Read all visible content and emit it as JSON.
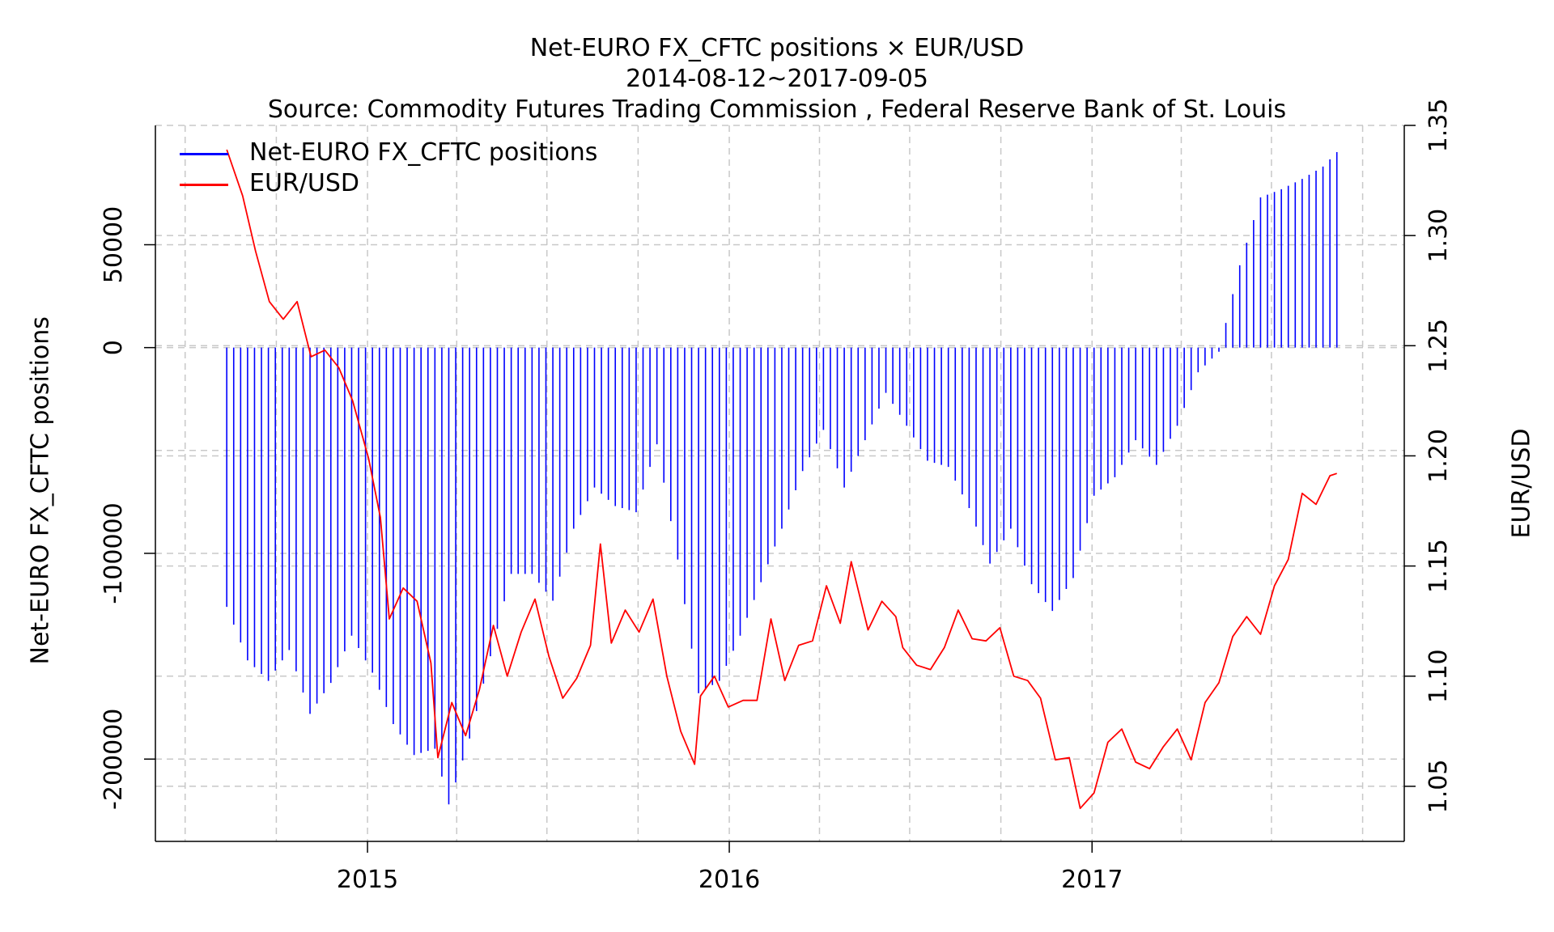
{
  "title": "Net-EURO FX_CFTC positions × EUR/USD",
  "subtitle": "2014-08-12~2017-09-05",
  "source": "Source: Commodity Futures Trading Commission , Federal Reserve Bank of St. Louis",
  "colors": {
    "bars": "#0000ff",
    "line": "#ff0000",
    "grid": "#c8c8c8",
    "axis": "#000000"
  },
  "chart_data": {
    "type": "bar+line",
    "title": "Net-EURO FX_CFTC positions × EUR/USD",
    "subtitle": "2014-08-12~2017-09-05",
    "grid": true,
    "legend_position": "top-left",
    "legend": [
      "Net-EURO FX_CFTC positions",
      "EUR/USD"
    ],
    "x_axis": {
      "type": "date",
      "min": "2014-06-01",
      "max": "2017-11-12",
      "ticks": [
        "2015-01-01",
        "2016-01-01",
        "2017-01-01"
      ],
      "tick_labels": [
        "2015",
        "2016",
        "2017"
      ]
    },
    "y_left": {
      "label": "Net-EURO FX_CFTC positions",
      "range": [
        -240000,
        108000
      ],
      "ticks": [
        -200000,
        -100000,
        0,
        50000
      ],
      "tick_labels": [
        "-200000",
        "-100000",
        "0",
        "50000"
      ]
    },
    "y_right": {
      "label": "EUR/USD",
      "range": [
        1.025,
        1.35
      ],
      "ticks": [
        1.05,
        1.1,
        1.15,
        1.2,
        1.25,
        1.3,
        1.35
      ],
      "tick_labels": [
        "1.05",
        "1.10",
        "1.15",
        "1.20",
        "1.25",
        "1.30",
        "1.35"
      ]
    },
    "series": [
      {
        "name": "Net-EURO FX_CFTC positions",
        "type": "bar",
        "axis": "left",
        "dates": [
          "2014-08-12",
          "2014-09-02",
          "2014-09-23",
          "2014-10-14",
          "2014-11-04",
          "2014-11-25",
          "2014-12-16",
          "2015-01-06",
          "2015-01-27",
          "2015-02-17",
          "2015-03-10",
          "2015-03-24",
          "2015-04-14",
          "2015-05-05",
          "2015-05-26",
          "2015-06-16",
          "2015-07-07",
          "2015-07-28",
          "2015-08-18",
          "2015-09-08",
          "2015-09-29",
          "2015-10-20",
          "2015-11-10",
          "2015-12-01",
          "2015-12-22",
          "2016-01-12",
          "2016-02-02",
          "2016-02-23",
          "2016-03-15",
          "2016-04-05",
          "2016-04-26",
          "2016-05-17",
          "2016-06-07",
          "2016-06-28",
          "2016-07-19",
          "2016-08-09",
          "2016-08-30",
          "2016-09-20",
          "2016-10-11",
          "2016-11-01",
          "2016-11-22",
          "2016-12-13",
          "2017-01-03",
          "2017-01-24",
          "2017-02-14",
          "2017-03-07",
          "2017-03-28",
          "2017-04-18",
          "2017-05-09",
          "2017-05-30",
          "2017-06-20",
          "2017-07-11",
          "2017-08-01",
          "2017-08-22",
          "2017-09-05"
        ],
        "values": [
          -126000,
          -152000,
          -162000,
          -147000,
          -178000,
          -163000,
          -140000,
          -158000,
          -183000,
          -198000,
          -195000,
          -222000,
          -190000,
          -150000,
          -110000,
          -110000,
          -123000,
          -88000,
          -68000,
          -77000,
          -80000,
          -47000,
          -103000,
          -168000,
          -162000,
          -140000,
          -114000,
          -88000,
          -60000,
          -40000,
          -68000,
          -45000,
          -22000,
          -38000,
          -55000,
          -58000,
          -78000,
          -105000,
          -88000,
          -115000,
          -128000,
          -112000,
          -72000,
          -63000,
          -45000,
          -57000,
          -38000,
          -12000,
          -2000,
          40000,
          73000,
          77000,
          82000,
          88000,
          95000
        ]
      },
      {
        "name": "EUR/USD",
        "type": "line",
        "axis": "right",
        "dates": [
          "2014-08-12",
          "2014-08-28",
          "2014-09-10",
          "2014-09-24",
          "2014-10-08",
          "2014-10-22",
          "2014-11-05",
          "2014-11-19",
          "2014-12-03",
          "2014-12-17",
          "2015-01-02",
          "2015-01-14",
          "2015-01-23",
          "2015-02-06",
          "2015-02-20",
          "2015-03-06",
          "2015-03-13",
          "2015-03-27",
          "2015-04-10",
          "2015-04-24",
          "2015-05-08",
          "2015-05-22",
          "2015-06-05",
          "2015-06-19",
          "2015-07-03",
          "2015-07-17",
          "2015-07-31",
          "2015-08-14",
          "2015-08-24",
          "2015-09-04",
          "2015-09-18",
          "2015-10-02",
          "2015-10-16",
          "2015-10-30",
          "2015-11-13",
          "2015-11-27",
          "2015-12-03",
          "2015-12-17",
          "2015-12-31",
          "2016-01-15",
          "2016-01-29",
          "2016-02-12",
          "2016-02-26",
          "2016-03-11",
          "2016-03-25",
          "2016-04-08",
          "2016-04-22",
          "2016-05-03",
          "2016-05-20",
          "2016-06-03",
          "2016-06-17",
          "2016-06-24",
          "2016-07-08",
          "2016-07-22",
          "2016-08-05",
          "2016-08-19",
          "2016-09-02",
          "2016-09-16",
          "2016-09-30",
          "2016-10-14",
          "2016-10-28",
          "2016-11-10",
          "2016-11-25",
          "2016-12-09",
          "2016-12-20",
          "2017-01-03",
          "2017-01-17",
          "2017-01-31",
          "2017-02-14",
          "2017-02-28",
          "2017-03-14",
          "2017-03-28",
          "2017-04-11",
          "2017-04-25",
          "2017-05-09",
          "2017-05-23",
          "2017-06-06",
          "2017-06-20",
          "2017-07-04",
          "2017-07-18",
          "2017-08-01",
          "2017-08-15",
          "2017-08-29",
          "2017-09-05"
        ],
        "values": [
          1.339,
          1.318,
          1.293,
          1.27,
          1.262,
          1.27,
          1.245,
          1.248,
          1.24,
          1.225,
          1.199,
          1.172,
          1.126,
          1.14,
          1.134,
          1.106,
          1.063,
          1.088,
          1.073,
          1.094,
          1.123,
          1.1,
          1.12,
          1.135,
          1.109,
          1.09,
          1.099,
          1.114,
          1.16,
          1.115,
          1.13,
          1.12,
          1.135,
          1.1,
          1.075,
          1.06,
          1.091,
          1.1,
          1.086,
          1.089,
          1.089,
          1.126,
          1.098,
          1.114,
          1.116,
          1.141,
          1.124,
          1.152,
          1.121,
          1.134,
          1.127,
          1.113,
          1.105,
          1.103,
          1.113,
          1.13,
          1.117,
          1.116,
          1.122,
          1.1,
          1.098,
          1.09,
          1.062,
          1.063,
          1.04,
          1.047,
          1.07,
          1.076,
          1.061,
          1.058,
          1.068,
          1.076,
          1.062,
          1.088,
          1.097,
          1.118,
          1.127,
          1.119,
          1.141,
          1.153,
          1.183,
          1.178,
          1.191,
          1.192
        ]
      }
    ]
  }
}
